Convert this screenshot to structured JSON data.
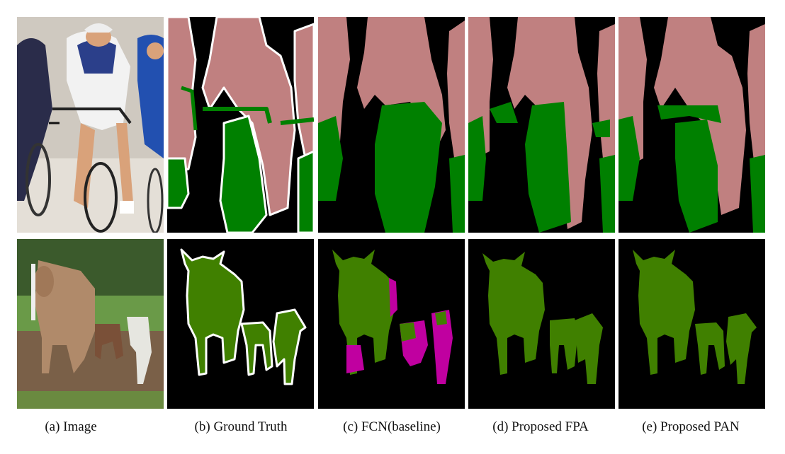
{
  "figure": {
    "captions": [
      "(a) Image",
      "(b) Ground Truth",
      "(c) FCN(baseline)",
      "(d) Proposed FPA",
      "(e) Proposed  PAN"
    ]
  },
  "colors": {
    "background": "#000000",
    "person": "#c08080",
    "bicycle": "#008000",
    "cow": "#408000",
    "misclass": "#c000a0",
    "boundary": "#ffffff"
  }
}
